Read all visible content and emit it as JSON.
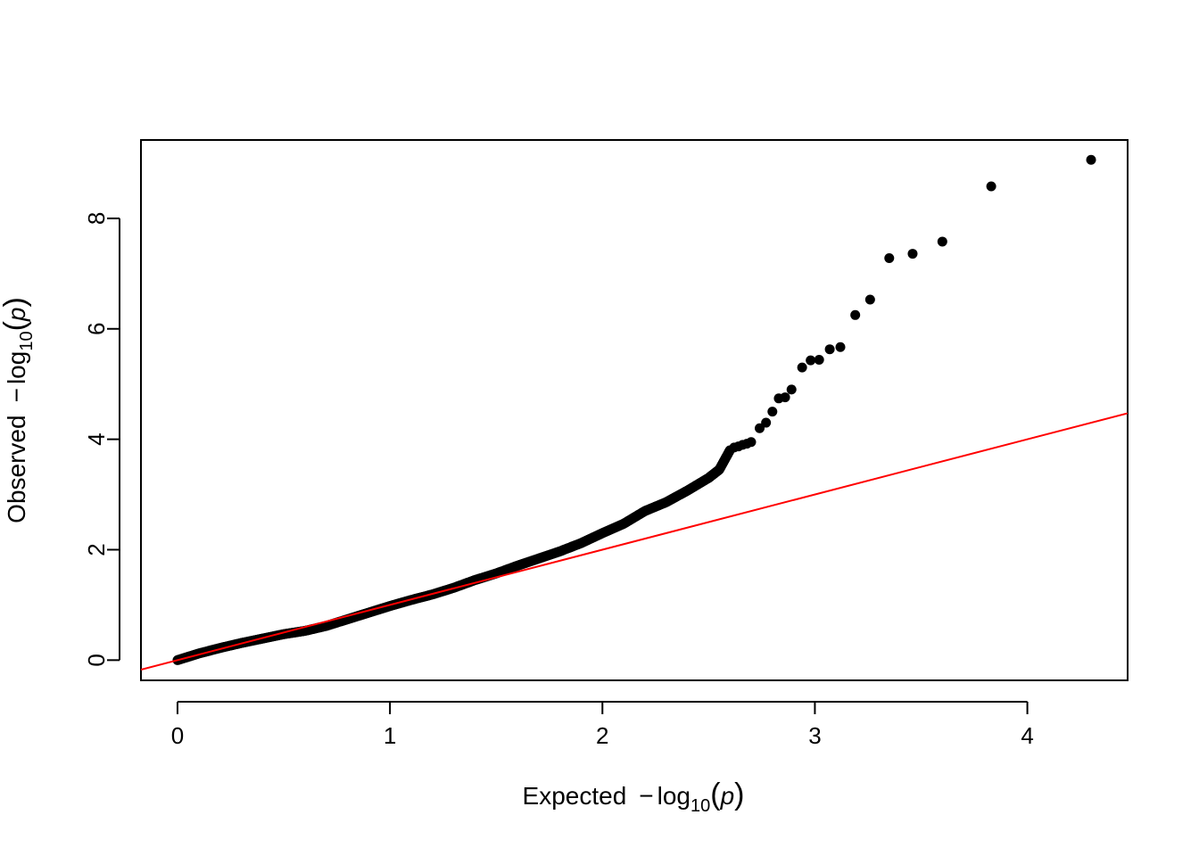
{
  "chart_data": {
    "type": "scatter",
    "title": "",
    "xlabel": {
      "prefix": "Expected",
      "minus": "−",
      "log": "log",
      "base": "10",
      "open": "(",
      "var": "p",
      "close": ")"
    },
    "ylabel": {
      "prefix": "Observed",
      "minus": "−",
      "log": "log",
      "base": "10",
      "open": "(",
      "var": "p",
      "close": ")"
    },
    "xlim": [
      -0.172,
      4.472
    ],
    "ylim": [
      -0.366,
      9.42
    ],
    "x_ticks": [
      0,
      1,
      2,
      3,
      4
    ],
    "y_ticks": [
      0,
      2,
      4,
      6,
      8
    ],
    "x_tick_labels": [
      "0",
      "1",
      "2",
      "3",
      "4"
    ],
    "y_tick_labels": [
      "0",
      "2",
      "4",
      "6",
      "8"
    ],
    "grid": false,
    "point_color": "#000000",
    "reference_line": {
      "type": "identity",
      "slope": 1,
      "intercept": 0,
      "color": "#ff0000"
    },
    "bulk_curve": [
      [
        0.0,
        0.0
      ],
      [
        0.1,
        0.12
      ],
      [
        0.2,
        0.22
      ],
      [
        0.3,
        0.31
      ],
      [
        0.4,
        0.39
      ],
      [
        0.5,
        0.47
      ],
      [
        0.6,
        0.53
      ],
      [
        0.7,
        0.62
      ],
      [
        0.8,
        0.74
      ],
      [
        0.9,
        0.86
      ],
      [
        1.0,
        0.98
      ],
      [
        1.1,
        1.09
      ],
      [
        1.2,
        1.19
      ],
      [
        1.3,
        1.31
      ],
      [
        1.4,
        1.45
      ],
      [
        1.5,
        1.57
      ],
      [
        1.6,
        1.71
      ],
      [
        1.7,
        1.84
      ],
      [
        1.8,
        1.97
      ],
      [
        1.9,
        2.12
      ],
      [
        2.0,
        2.3
      ],
      [
        2.1,
        2.47
      ],
      [
        2.2,
        2.7
      ],
      [
        2.3,
        2.86
      ],
      [
        2.4,
        3.07
      ],
      [
        2.5,
        3.3
      ],
      [
        2.55,
        3.45
      ],
      [
        2.6,
        3.8
      ]
    ],
    "tail_points": [
      [
        2.62,
        3.85
      ],
      [
        2.64,
        3.87
      ],
      [
        2.66,
        3.9
      ],
      [
        2.68,
        3.92
      ],
      [
        2.7,
        3.95
      ],
      [
        2.74,
        4.2
      ],
      [
        2.77,
        4.3
      ],
      [
        2.8,
        4.5
      ],
      [
        2.83,
        4.74
      ],
      [
        2.86,
        4.76
      ],
      [
        2.89,
        4.9
      ],
      [
        2.94,
        5.3
      ],
      [
        2.98,
        5.43
      ],
      [
        3.02,
        5.44
      ],
      [
        3.07,
        5.63
      ],
      [
        3.12,
        5.67
      ],
      [
        3.19,
        6.25
      ],
      [
        3.26,
        6.53
      ],
      [
        3.35,
        7.28
      ],
      [
        3.46,
        7.36
      ],
      [
        3.6,
        7.58
      ],
      [
        3.83,
        8.58
      ],
      [
        4.3,
        9.06
      ]
    ]
  }
}
